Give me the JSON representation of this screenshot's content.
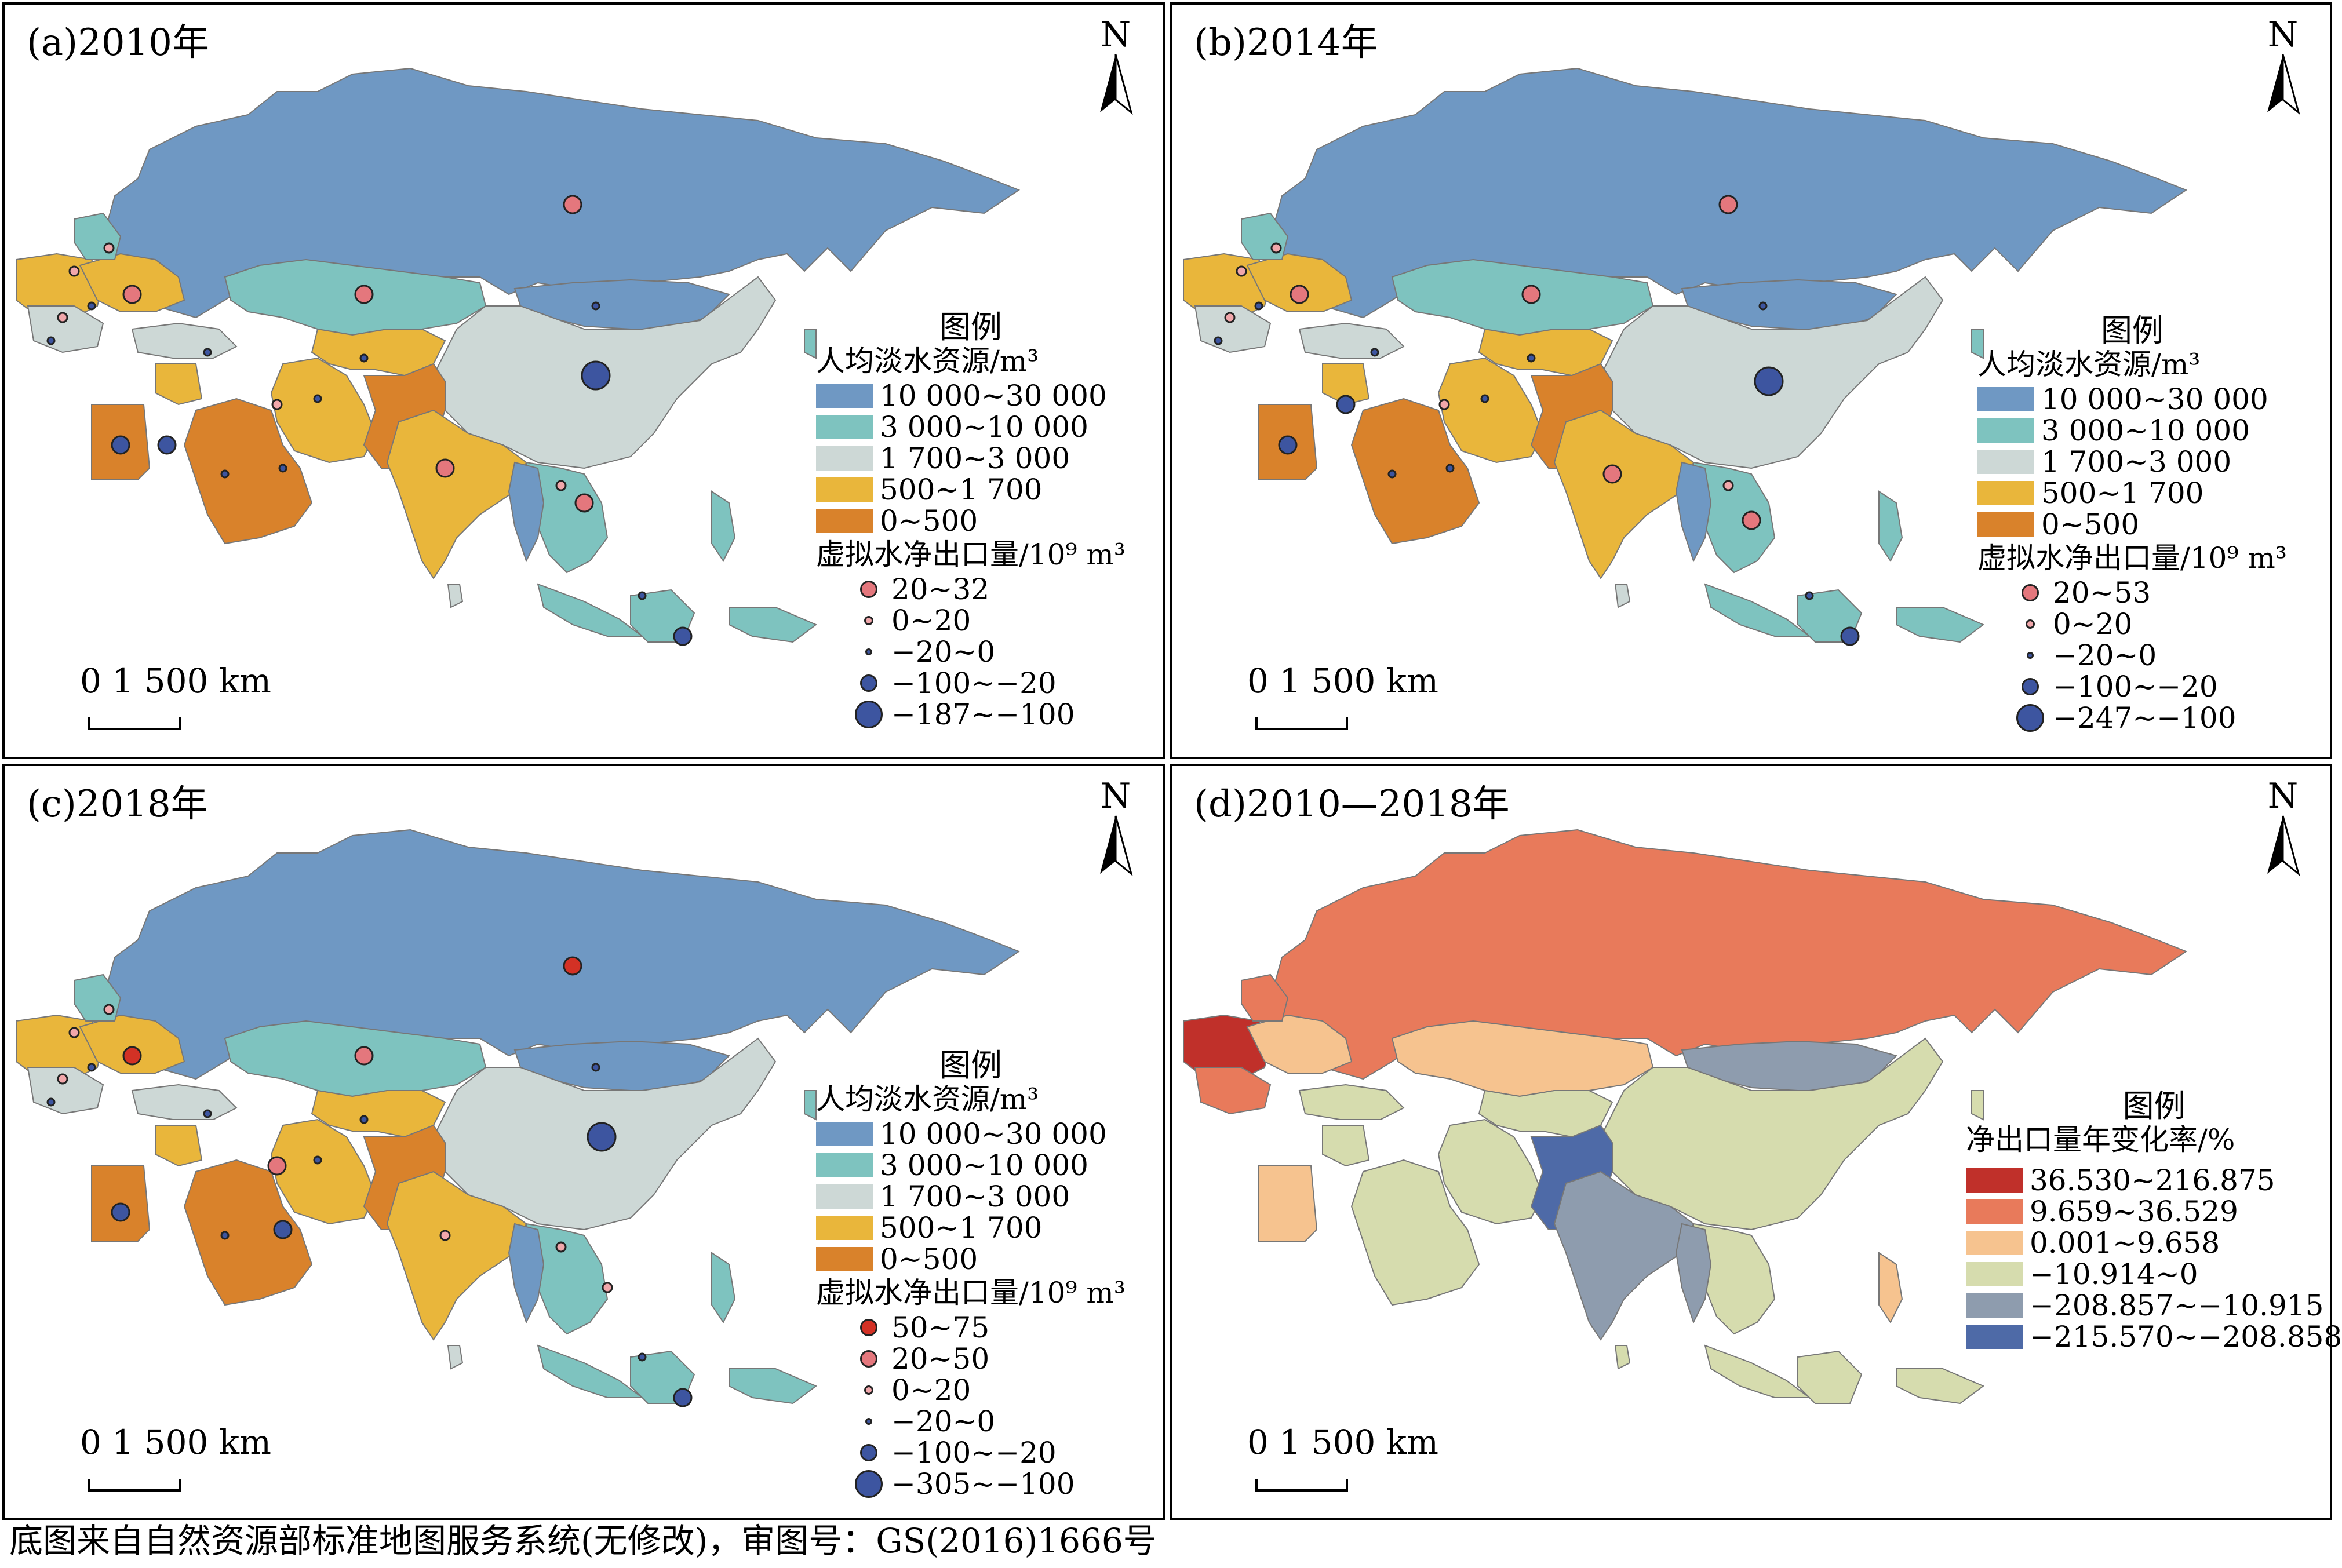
{
  "colors": {
    "water_classes": [
      "#6f98c3",
      "#7ec3bf",
      "#cdd8d6",
      "#e9b63b",
      "#d9822b"
    ],
    "point_positive_big": "#e4777d",
    "point_positive_small": "#f1a7ab",
    "point_negative": "#3d55a0",
    "point_positive_max": "#d33125",
    "change_classes": [
      "#c0302a",
      "#e87a5b",
      "#f6c38f",
      "#d6dcae",
      "#8e9cae",
      "#4e6aa7"
    ]
  },
  "panels": {
    "a": {
      "title": "(a)2010年",
      "north": "N",
      "scale_label": "0    1 500 km",
      "legend_title": "图例",
      "water_subtitle": "人均淡水资源/m³",
      "water_classes": [
        "10 000~30 000",
        "3 000~10 000",
        "1 700~3 000",
        "500~1 700",
        "0~500"
      ],
      "vw_subtitle": "虚拟水净出口量/10⁹ m³",
      "vw_classes": [
        "20~32",
        "0~20",
        "−20~0",
        "−100~−20",
        "−187~−100"
      ],
      "vw_styles": [
        "positive_big",
        "positive_small",
        "negative_tiny",
        "negative_mid",
        "negative_big"
      ]
    },
    "b": {
      "title": "(b)2014年",
      "north": "N",
      "scale_label": "0    1 500 km",
      "legend_title": "图例",
      "water_subtitle": "人均淡水资源/m³",
      "water_classes": [
        "10 000~30 000",
        "3 000~10 000",
        "1 700~3 000",
        "500~1 700",
        "0~500"
      ],
      "vw_subtitle": "虚拟水净出口量/10⁹ m³",
      "vw_classes": [
        "20~53",
        "0~20",
        "−20~0",
        "−100~−20",
        "−247~−100"
      ],
      "vw_styles": [
        "positive_big",
        "positive_small",
        "negative_tiny",
        "negative_mid",
        "negative_big"
      ]
    },
    "c": {
      "title": "(c)2018年",
      "north": "N",
      "scale_label": "0    1 500 km",
      "legend_title": "图例",
      "water_subtitle": "人均淡水资源/m³",
      "water_classes": [
        "10 000~30 000",
        "3 000~10 000",
        "1 700~3 000",
        "500~1 700",
        "0~500"
      ],
      "vw_subtitle": "虚拟水净出口量/10⁹ m³",
      "vw_classes": [
        "50~75",
        "20~50",
        "0~20",
        "−20~0",
        "−100~−20",
        "−305~−100"
      ],
      "vw_styles": [
        "positive_max",
        "positive_big",
        "positive_small",
        "negative_tiny",
        "negative_mid",
        "negative_big"
      ]
    },
    "d": {
      "title": "(d)2010—2018年",
      "north": "N",
      "scale_label": "0    1 500 km",
      "legend_title": "图例",
      "change_subtitle": "净出口量年变化率/%",
      "change_classes": [
        "36.530~216.875",
        "9.659~36.529",
        "0.001~9.658",
        "−10.914~0",
        "−208.857~−10.915",
        "−215.570~−208.858"
      ]
    }
  },
  "footer": "底图来自自然资源部标准地图服务系统(无修改)，审图号：GS(2016)1666号"
}
